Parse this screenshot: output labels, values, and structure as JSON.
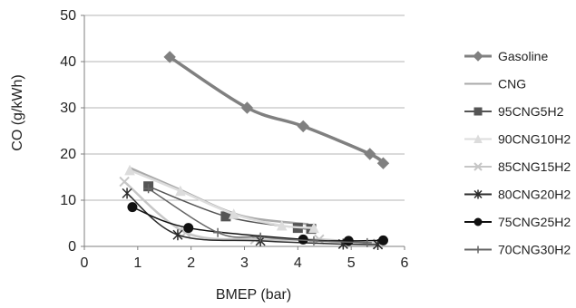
{
  "chart_data": {
    "type": "line",
    "title": "",
    "xlabel": "BMEP (bar)",
    "ylabel": "CO (g/kWh)",
    "xlim": [
      0,
      6
    ],
    "ylim": [
      0,
      50
    ],
    "xticks": [
      0,
      1,
      2,
      3,
      4,
      5,
      6
    ],
    "yticks": [
      0,
      10,
      20,
      30,
      40,
      50
    ],
    "grid": "horizontal",
    "legend_position": "right",
    "series": [
      {
        "name": "Gasoline",
        "color": "#808080",
        "marker": "diamond",
        "points": [
          [
            1.6,
            41
          ],
          [
            3.05,
            30
          ],
          [
            4.1,
            26
          ],
          [
            5.35,
            20
          ],
          [
            5.6,
            18
          ]
        ]
      },
      {
        "name": "CNG",
        "color": "#a9a9a9",
        "marker": "none",
        "points": [
          [
            0.85,
            17
          ],
          [
            1.75,
            12.5
          ],
          [
            2.6,
            8
          ],
          [
            3.2,
            6
          ],
          [
            4.2,
            4.8
          ]
        ]
      },
      {
        "name": "95CNG5H2",
        "color": "#555555",
        "marker": "square",
        "points": [
          [
            1.2,
            13
          ],
          [
            2.65,
            6.5
          ],
          [
            4.0,
            4
          ],
          [
            4.25,
            3.8
          ]
        ]
      },
      {
        "name": "90CNG10H2",
        "color": "#dcdcdc",
        "marker": "triangle",
        "points": [
          [
            0.85,
            16.5
          ],
          [
            1.8,
            12
          ],
          [
            2.8,
            7
          ],
          [
            3.7,
            4.5
          ],
          [
            4.3,
            4
          ]
        ]
      },
      {
        "name": "85CNG15H2",
        "color": "#c6c6c6",
        "marker": "x",
        "points": [
          [
            0.75,
            14
          ],
          [
            1.9,
            3
          ],
          [
            3.2,
            1.5
          ],
          [
            4.4,
            1.5
          ],
          [
            5.5,
            0.6
          ]
        ]
      },
      {
        "name": "80CNG20H2",
        "color": "#2b2b2b",
        "marker": "asterisk",
        "points": [
          [
            0.8,
            11.5
          ],
          [
            1.75,
            2.5
          ],
          [
            3.3,
            1.2
          ],
          [
            4.85,
            0.5
          ],
          [
            5.5,
            0.4
          ]
        ]
      },
      {
        "name": "75CNG25H2",
        "color": "#111111",
        "marker": "circle",
        "points": [
          [
            0.9,
            8.5
          ],
          [
            1.95,
            4
          ],
          [
            4.1,
            1.5
          ],
          [
            4.95,
            1.2
          ],
          [
            5.6,
            1.3
          ]
        ]
      },
      {
        "name": "70CNG30H2",
        "color": "#666666",
        "marker": "plus",
        "points": [
          [
            1.2,
            12.5
          ],
          [
            2.5,
            3
          ],
          [
            3.3,
            2
          ],
          [
            4.3,
            1.2
          ],
          [
            5.3,
            0.8
          ]
        ]
      }
    ]
  }
}
